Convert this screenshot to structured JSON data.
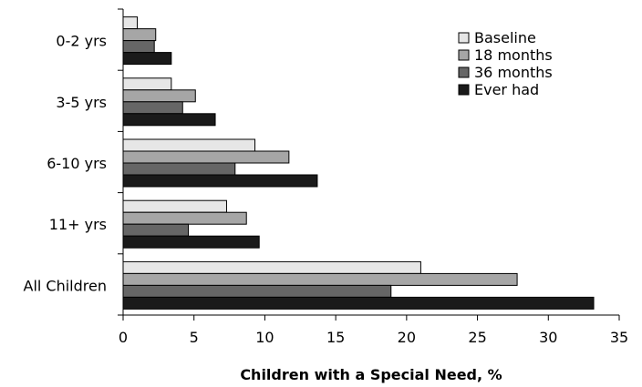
{
  "chart_data": {
    "type": "bar",
    "orientation": "horizontal",
    "xlabel": "Children with a Special Need, %",
    "ylabel": "",
    "xlim": [
      0,
      35
    ],
    "xticks": [
      0,
      5,
      10,
      15,
      20,
      25,
      30,
      35
    ],
    "grid": false,
    "legend_position": "top-right",
    "categories": [
      "0-2 yrs",
      "3-5 yrs",
      "6-10 yrs",
      "11+ yrs",
      "All Children"
    ],
    "series": [
      {
        "name": "Baseline",
        "color": "#e6e6e6",
        "values": [
          1.0,
          3.4,
          9.3,
          7.3,
          21.0
        ]
      },
      {
        "name": "18 months",
        "color": "#a6a6a6",
        "values": [
          2.3,
          5.1,
          11.7,
          8.7,
          27.8
        ]
      },
      {
        "name": "36 months",
        "color": "#666666",
        "values": [
          2.2,
          4.2,
          7.9,
          4.6,
          18.9
        ]
      },
      {
        "name": "Ever had",
        "color": "#1a1a1a",
        "values": [
          3.4,
          6.5,
          13.7,
          9.6,
          33.2
        ]
      }
    ]
  }
}
